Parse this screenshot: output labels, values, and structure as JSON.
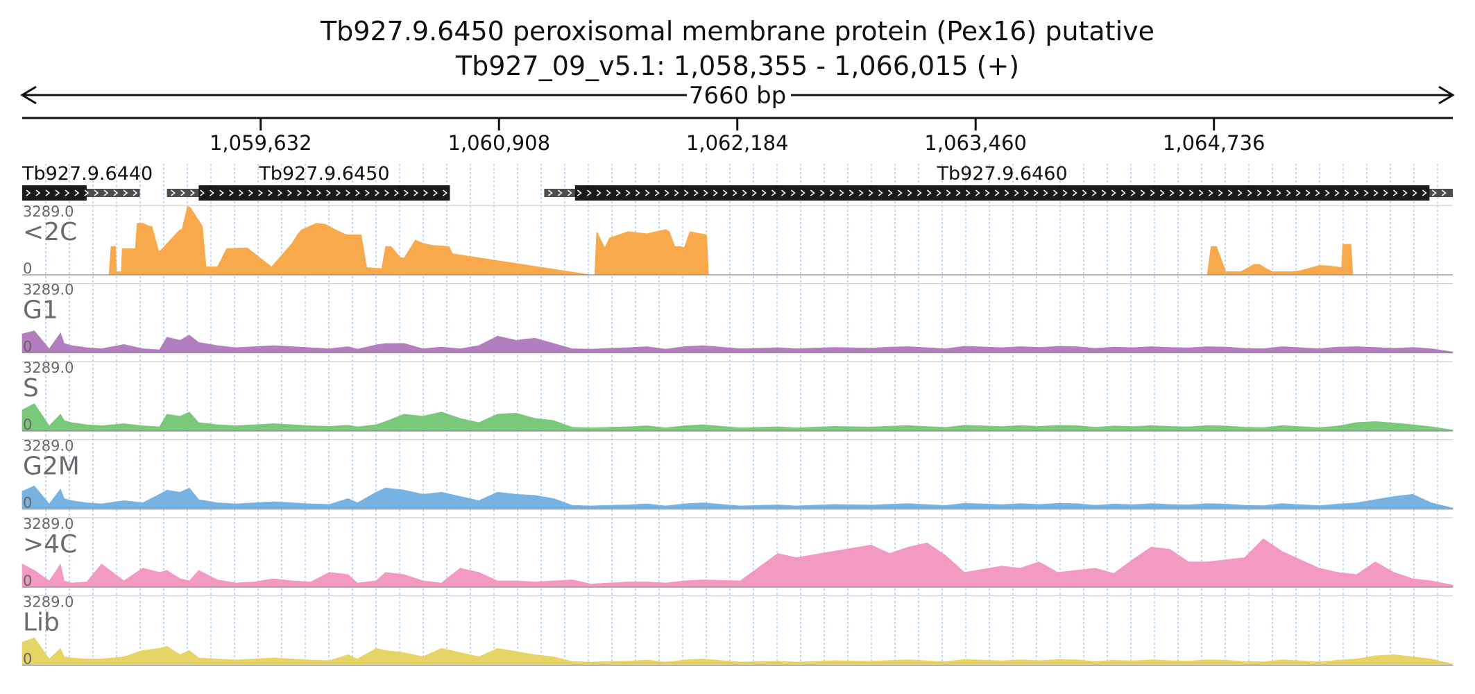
{
  "chart_data": {
    "type": "area",
    "title": "Tb927.9.6450  peroxisomal membrane protein (Pex16)  putative",
    "subtitle": "Tb927_09_v5.1: 1,058,355 - 1,066,015 (+)",
    "span_label": "7660 bp",
    "xlim": [
      1058355,
      1066015
    ],
    "x_ticks": [
      {
        "value": 1059632,
        "label": "1,059,632"
      },
      {
        "value": 1060908,
        "label": "1,060,908"
      },
      {
        "value": 1062184,
        "label": "1,062,184"
      },
      {
        "value": 1063460,
        "label": "1,063,460"
      },
      {
        "value": 1064736,
        "label": "1,064,736"
      }
    ],
    "genes": [
      {
        "name": "Tb927.9.6440",
        "start": 1058355,
        "end": 1058985,
        "cds_start": 1058355,
        "cds_end": 1058700,
        "strand": "+"
      },
      {
        "name": "Tb927.9.6450",
        "start": 1059130,
        "end": 1060645,
        "cds_start": 1059300,
        "cds_end": 1060645,
        "strand": "+"
      },
      {
        "name": "Tb927.9.6460",
        "start": 1061150,
        "end": 1066015,
        "cds_start": 1061315,
        "cds_end": 1065890,
        "strand": "+"
      }
    ],
    "ylim": [
      0,
      3289.0
    ],
    "y_max_label": "3289.0",
    "y_min_label": "0",
    "series": [
      {
        "name": "<2C",
        "color": "#F8A94B",
        "x": [
          1058355,
          1058820,
          1058830,
          1058855,
          1058860,
          1058885,
          1058890,
          1058960,
          1058970,
          1059000,
          1059040,
          1059050,
          1059085,
          1059095,
          1059200,
          1059210,
          1059240,
          1059255,
          1059320,
          1059340,
          1059400,
          1059450,
          1059560,
          1059690,
          1059800,
          1059830,
          1059850,
          1059930,
          1059980,
          1060030,
          1060090,
          1060170,
          1060200,
          1060280,
          1060300,
          1060330,
          1060380,
          1060400,
          1060460,
          1060500,
          1060550,
          1060640,
          1060660,
          1061400,
          1061420,
          1061430,
          1061435,
          1061470,
          1061475,
          1061500,
          1061550,
          1061600,
          1061700,
          1061800,
          1061820,
          1061850,
          1061880,
          1061900,
          1061930,
          1062020,
          1062030,
          1064700,
          1064720,
          1064750,
          1064800,
          1064880,
          1064950,
          1064980,
          1065020,
          1065050,
          1065100,
          1065150,
          1065200,
          1065300,
          1065350,
          1065420,
          1065425,
          1065470,
          1065480,
          1066015
        ],
        "y": [
          0,
          0,
          1350,
          1350,
          150,
          150,
          1250,
          1250,
          2450,
          2450,
          2300,
          2300,
          1150,
          1150,
          2150,
          2150,
          3250,
          3200,
          2300,
          380,
          380,
          1250,
          1280,
          380,
          1500,
          1930,
          2130,
          2450,
          2400,
          2150,
          1900,
          1900,
          350,
          300,
          1350,
          1350,
          820,
          800,
          1650,
          1500,
          1400,
          1350,
          1000,
          0,
          0,
          2000,
          2000,
          1350,
          1300,
          1750,
          1900,
          2050,
          1950,
          2150,
          2050,
          1350,
          1350,
          1300,
          2050,
          1900,
          0,
          0,
          1350,
          1350,
          150,
          150,
          500,
          500,
          280,
          150,
          150,
          150,
          200,
          450,
          430,
          350,
          1450,
          1450,
          0,
          0
        ]
      },
      {
        "name": "G1",
        "color": "#B47EBE",
        "x": [
          1058355,
          1058420,
          1058500,
          1058560,
          1058580,
          1058620,
          1058700,
          1058780,
          1058900,
          1059000,
          1059090,
          1059130,
          1059200,
          1059250,
          1059300,
          1059400,
          1059500,
          1059600,
          1059700,
          1059800,
          1059900,
          1060000,
          1060100,
          1060150,
          1060250,
          1060300,
          1060400,
          1060500,
          1060600,
          1060700,
          1060800,
          1060900,
          1061000,
          1061100,
          1061200,
          1061300,
          1061400,
          1061500,
          1061600,
          1061700,
          1061800,
          1061900,
          1062000,
          1062200,
          1062400,
          1062500,
          1062700,
          1062900,
          1063000,
          1063100,
          1063200,
          1063300,
          1063400,
          1063600,
          1063700,
          1063800,
          1063900,
          1064000,
          1064100,
          1064200,
          1064300,
          1064400,
          1064500,
          1064600,
          1064700,
          1064800,
          1064900,
          1065000,
          1065100,
          1065200,
          1065300,
          1065400,
          1065500,
          1065600,
          1065700,
          1065800,
          1065900,
          1066015
        ],
        "y": [
          900,
          1050,
          200,
          950,
          450,
          350,
          250,
          200,
          400,
          200,
          150,
          750,
          600,
          850,
          500,
          350,
          250,
          300,
          350,
          300,
          250,
          200,
          300,
          180,
          380,
          450,
          450,
          200,
          280,
          200,
          350,
          800,
          600,
          700,
          450,
          200,
          180,
          220,
          250,
          300,
          180,
          300,
          350,
          200,
          250,
          200,
          260,
          230,
          280,
          300,
          250,
          200,
          320,
          250,
          300,
          260,
          310,
          300,
          220,
          280,
          250,
          300,
          260,
          240,
          300,
          280,
          220,
          200,
          300,
          250,
          200,
          280,
          300,
          260,
          220,
          260,
          200,
          50
        ]
      },
      {
        "name": "S",
        "color": "#7AC97B",
        "x": [
          1058355,
          1058420,
          1058500,
          1058560,
          1058580,
          1058620,
          1058700,
          1058780,
          1058900,
          1059000,
          1059090,
          1059130,
          1059200,
          1059250,
          1059300,
          1059400,
          1059500,
          1059600,
          1059700,
          1059800,
          1059900,
          1060000,
          1060100,
          1060150,
          1060250,
          1060300,
          1060400,
          1060500,
          1060600,
          1060700,
          1060800,
          1060900,
          1061000,
          1061100,
          1061200,
          1061300,
          1061400,
          1061500,
          1061600,
          1061700,
          1061800,
          1061900,
          1062000,
          1062200,
          1062400,
          1062500,
          1062700,
          1062900,
          1063000,
          1063100,
          1063200,
          1063300,
          1063400,
          1063600,
          1063700,
          1063800,
          1063900,
          1064000,
          1064100,
          1064200,
          1064300,
          1064400,
          1064500,
          1064600,
          1064700,
          1064800,
          1064900,
          1065000,
          1065100,
          1065200,
          1065300,
          1065400,
          1065500,
          1065600,
          1065700,
          1065800,
          1065900,
          1066015
        ],
        "y": [
          1000,
          1300,
          250,
          800,
          500,
          400,
          300,
          250,
          350,
          250,
          200,
          800,
          700,
          900,
          400,
          300,
          250,
          300,
          350,
          300,
          250,
          220,
          280,
          200,
          300,
          450,
          800,
          700,
          900,
          600,
          400,
          800,
          850,
          600,
          500,
          180,
          150,
          180,
          200,
          250,
          150,
          250,
          300,
          150,
          200,
          150,
          220,
          190,
          230,
          260,
          210,
          170,
          280,
          210,
          260,
          220,
          270,
          260,
          180,
          240,
          210,
          260,
          220,
          200,
          260,
          240,
          180,
          160,
          260,
          210,
          160,
          240,
          400,
          450,
          380,
          300,
          200,
          50
        ]
      },
      {
        "name": "G2M",
        "color": "#77B3E2",
        "x": [
          1058355,
          1058420,
          1058500,
          1058560,
          1058580,
          1058620,
          1058700,
          1058780,
          1058900,
          1059000,
          1059090,
          1059130,
          1059200,
          1059250,
          1059300,
          1059400,
          1059500,
          1059600,
          1059700,
          1059800,
          1059900,
          1060000,
          1060100,
          1060150,
          1060250,
          1060300,
          1060400,
          1060500,
          1060600,
          1060700,
          1060800,
          1060900,
          1061000,
          1061100,
          1061200,
          1061300,
          1061400,
          1061500,
          1061600,
          1061700,
          1061800,
          1061900,
          1062000,
          1062200,
          1062400,
          1062500,
          1062700,
          1062900,
          1063000,
          1063100,
          1063200,
          1063300,
          1063400,
          1063600,
          1063700,
          1063800,
          1063900,
          1064000,
          1064100,
          1064200,
          1064300,
          1064400,
          1064500,
          1064600,
          1064700,
          1064800,
          1064900,
          1065000,
          1065100,
          1065200,
          1065300,
          1065400,
          1065500,
          1065600,
          1065700,
          1065800,
          1065900,
          1066015
        ],
        "y": [
          850,
          1100,
          250,
          950,
          500,
          400,
          300,
          250,
          400,
          300,
          700,
          900,
          800,
          1000,
          450,
          300,
          250,
          300,
          350,
          300,
          250,
          220,
          500,
          300,
          800,
          1000,
          900,
          700,
          800,
          600,
          400,
          800,
          700,
          650,
          500,
          180,
          150,
          180,
          200,
          250,
          150,
          250,
          300,
          150,
          200,
          150,
          220,
          190,
          230,
          260,
          210,
          170,
          280,
          210,
          260,
          220,
          270,
          260,
          180,
          240,
          210,
          260,
          220,
          200,
          260,
          240,
          180,
          160,
          260,
          210,
          160,
          240,
          300,
          450,
          600,
          700,
          300,
          50
        ]
      },
      {
        "name": ">4C",
        "color": "#F39AC2",
        "x": [
          1058355,
          1058420,
          1058500,
          1058560,
          1058580,
          1058620,
          1058700,
          1058780,
          1058900,
          1059000,
          1059090,
          1059130,
          1059200,
          1059250,
          1059300,
          1059400,
          1059500,
          1059600,
          1059700,
          1059800,
          1059900,
          1060000,
          1060100,
          1060150,
          1060250,
          1060300,
          1060400,
          1060500,
          1060600,
          1060700,
          1060800,
          1060900,
          1061000,
          1061100,
          1061200,
          1061300,
          1061400,
          1061500,
          1061600,
          1061700,
          1061800,
          1061900,
          1062000,
          1062200,
          1062400,
          1062500,
          1062700,
          1062900,
          1063000,
          1063100,
          1063200,
          1063300,
          1063400,
          1063600,
          1063700,
          1063800,
          1063900,
          1064000,
          1064100,
          1064200,
          1064300,
          1064400,
          1064500,
          1064600,
          1064700,
          1064800,
          1064900,
          1065000,
          1065100,
          1065200,
          1065300,
          1065400,
          1065500,
          1065600,
          1065700,
          1065800,
          1065900,
          1066015
        ],
        "y": [
          1100,
          800,
          300,
          1100,
          300,
          200,
          250,
          1100,
          300,
          900,
          700,
          800,
          400,
          300,
          800,
          350,
          200,
          250,
          400,
          300,
          250,
          700,
          600,
          200,
          300,
          700,
          600,
          300,
          200,
          900,
          700,
          300,
          300,
          250,
          300,
          350,
          150,
          200,
          250,
          250,
          200,
          300,
          350,
          300,
          1600,
          1400,
          1700,
          2000,
          1600,
          1900,
          2100,
          1500,
          700,
          1000,
          900,
          1200,
          700,
          800,
          900,
          650,
          1300,
          1900,
          1800,
          1200,
          1200,
          1300,
          1400,
          2300,
          1700,
          1300,
          900,
          700,
          600,
          1200,
          700,
          400,
          300,
          100
        ]
      },
      {
        "name": "Lib",
        "color": "#E6D466",
        "x": [
          1058355,
          1058420,
          1058500,
          1058560,
          1058580,
          1058620,
          1058700,
          1058780,
          1058900,
          1059000,
          1059090,
          1059130,
          1059200,
          1059250,
          1059300,
          1059400,
          1059500,
          1059600,
          1059700,
          1059800,
          1059900,
          1060000,
          1060100,
          1060150,
          1060250,
          1060300,
          1060400,
          1060500,
          1060600,
          1060700,
          1060800,
          1060900,
          1061000,
          1061100,
          1061200,
          1061300,
          1061400,
          1061500,
          1061600,
          1061700,
          1061800,
          1061900,
          1062000,
          1062200,
          1062400,
          1062500,
          1062700,
          1062900,
          1063000,
          1063100,
          1063200,
          1063300,
          1063400,
          1063600,
          1063700,
          1063800,
          1063900,
          1064000,
          1064100,
          1064200,
          1064300,
          1064400,
          1064500,
          1064600,
          1064700,
          1064800,
          1064900,
          1065000,
          1065100,
          1065200,
          1065300,
          1065400,
          1065500,
          1065600,
          1065700,
          1065800,
          1065900,
          1066015
        ],
        "y": [
          1100,
          1300,
          300,
          800,
          400,
          350,
          300,
          300,
          400,
          700,
          800,
          900,
          500,
          700,
          350,
          300,
          250,
          300,
          350,
          300,
          250,
          220,
          500,
          300,
          800,
          700,
          600,
          400,
          800,
          600,
          400,
          800,
          650,
          500,
          400,
          180,
          150,
          180,
          200,
          250,
          150,
          250,
          300,
          150,
          200,
          150,
          220,
          190,
          230,
          260,
          210,
          170,
          280,
          210,
          260,
          220,
          270,
          260,
          180,
          240,
          210,
          260,
          220,
          200,
          260,
          240,
          180,
          160,
          260,
          210,
          160,
          240,
          300,
          450,
          500,
          400,
          300,
          50
        ]
      }
    ]
  }
}
